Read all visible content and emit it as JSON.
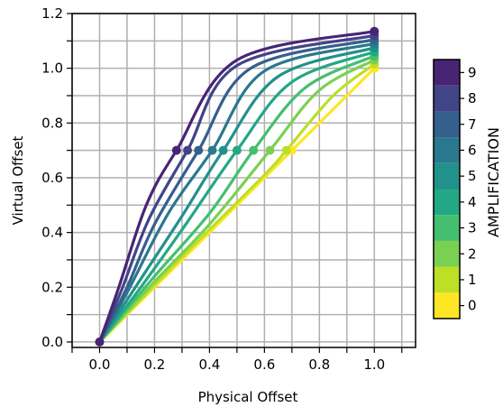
{
  "chart_data": {
    "type": "line",
    "title": "",
    "xlabel": "Physical Offset",
    "ylabel": "Virtual Offset",
    "xlim": [
      -0.1,
      1.15
    ],
    "ylim": [
      -0.02,
      1.2
    ],
    "x_ticks": [
      "0.0",
      "0.2",
      "0.4",
      "0.6",
      "0.8",
      "1.0"
    ],
    "y_ticks": [
      "0.0",
      "0.2",
      "0.4",
      "0.6",
      "0.8",
      "1.0",
      "1.2"
    ],
    "x_tick_values": [
      0.0,
      0.2,
      0.4,
      0.6,
      0.8,
      1.0
    ],
    "y_tick_values": [
      0.0,
      0.2,
      0.4,
      0.6,
      0.8,
      1.0,
      1.2
    ],
    "grid": true,
    "colorbar": {
      "label": "AMPLIFICATION",
      "ticks": [
        "0",
        "1",
        "2",
        "3",
        "4",
        "5",
        "6",
        "7",
        "8",
        "9"
      ],
      "colors": [
        "#fde725",
        "#bddf26",
        "#7ad151",
        "#44bf70",
        "#22a884",
        "#21918c",
        "#2a788e",
        "#355f8d",
        "#414487",
        "#482475"
      ]
    },
    "series": [
      {
        "level": 0,
        "color": "#fde725",
        "points": [
          [
            0.0,
            0.0
          ],
          [
            0.25,
            0.25
          ],
          [
            0.5,
            0.5
          ],
          [
            0.75,
            0.75
          ],
          [
            1.0,
            1.0
          ]
        ],
        "mid_marker": [
          0.7,
          0.7
        ],
        "end_marker": [
          1.0,
          1.0
        ]
      },
      {
        "level": 1,
        "color": "#bddf26",
        "points": [
          [
            0.0,
            0.0
          ],
          [
            0.3,
            0.31
          ],
          [
            0.6,
            0.61
          ],
          [
            0.68,
            0.7
          ],
          [
            0.85,
            0.9
          ],
          [
            1.0,
            1.015
          ]
        ],
        "mid_marker": [
          0.68,
          0.7
        ],
        "end_marker": [
          1.0,
          1.015
        ]
      },
      {
        "level": 2,
        "color": "#7ad151",
        "points": [
          [
            0.0,
            0.0
          ],
          [
            0.2,
            0.22
          ],
          [
            0.4,
            0.43
          ],
          [
            0.62,
            0.7
          ],
          [
            0.8,
            0.92
          ],
          [
            1.0,
            1.03
          ]
        ],
        "mid_marker": [
          0.62,
          0.7
        ],
        "end_marker": [
          1.0,
          1.03
        ]
      },
      {
        "level": 3,
        "color": "#44bf70",
        "points": [
          [
            0.0,
            0.0
          ],
          [
            0.2,
            0.24
          ],
          [
            0.4,
            0.47
          ],
          [
            0.56,
            0.7
          ],
          [
            0.75,
            0.93
          ],
          [
            1.0,
            1.045
          ]
        ],
        "mid_marker": [
          0.56,
          0.7
        ],
        "end_marker": [
          1.0,
          1.045
        ]
      },
      {
        "level": 4,
        "color": "#22a884",
        "points": [
          [
            0.0,
            0.0
          ],
          [
            0.15,
            0.2
          ],
          [
            0.3,
            0.41
          ],
          [
            0.5,
            0.7
          ],
          [
            0.7,
            0.95
          ],
          [
            1.0,
            1.06
          ]
        ],
        "mid_marker": [
          0.5,
          0.7
        ],
        "end_marker": [
          1.0,
          1.06
        ]
      },
      {
        "level": 5,
        "color": "#21918c",
        "points": [
          [
            0.0,
            0.0
          ],
          [
            0.15,
            0.23
          ],
          [
            0.3,
            0.46
          ],
          [
            0.45,
            0.7
          ],
          [
            0.65,
            0.97
          ],
          [
            1.0,
            1.075
          ]
        ],
        "mid_marker": [
          0.45,
          0.7
        ],
        "end_marker": [
          1.0,
          1.075
        ]
      },
      {
        "level": 6,
        "color": "#2a788e",
        "points": [
          [
            0.0,
            0.0
          ],
          [
            0.1,
            0.18
          ],
          [
            0.25,
            0.47
          ],
          [
            0.41,
            0.7
          ],
          [
            0.6,
            0.99
          ],
          [
            1.0,
            1.09
          ]
        ],
        "mid_marker": [
          0.41,
          0.7
        ],
        "end_marker": [
          1.0,
          1.09
        ]
      },
      {
        "level": 7,
        "color": "#355f8d",
        "points": [
          [
            0.0,
            0.0
          ],
          [
            0.1,
            0.2
          ],
          [
            0.2,
            0.43
          ],
          [
            0.36,
            0.7
          ],
          [
            0.55,
            1.0
          ],
          [
            1.0,
            1.105
          ]
        ],
        "mid_marker": [
          0.36,
          0.7
        ],
        "end_marker": [
          1.0,
          1.105
        ]
      },
      {
        "level": 8,
        "color": "#414487",
        "points": [
          [
            0.0,
            0.0
          ],
          [
            0.08,
            0.19
          ],
          [
            0.18,
            0.45
          ],
          [
            0.32,
            0.7
          ],
          [
            0.5,
            1.01
          ],
          [
            1.0,
            1.12
          ]
        ],
        "mid_marker": [
          0.32,
          0.7
        ],
        "end_marker": [
          1.0,
          1.12
        ]
      },
      {
        "level": 9,
        "color": "#482475",
        "points": [
          [
            0.0,
            0.0
          ],
          [
            0.07,
            0.2
          ],
          [
            0.17,
            0.5
          ],
          [
            0.28,
            0.7
          ],
          [
            0.5,
            1.03
          ],
          [
            1.0,
            1.135
          ]
        ],
        "mid_marker": [
          0.28,
          0.7
        ],
        "end_marker": [
          1.0,
          1.135
        ]
      }
    ]
  }
}
